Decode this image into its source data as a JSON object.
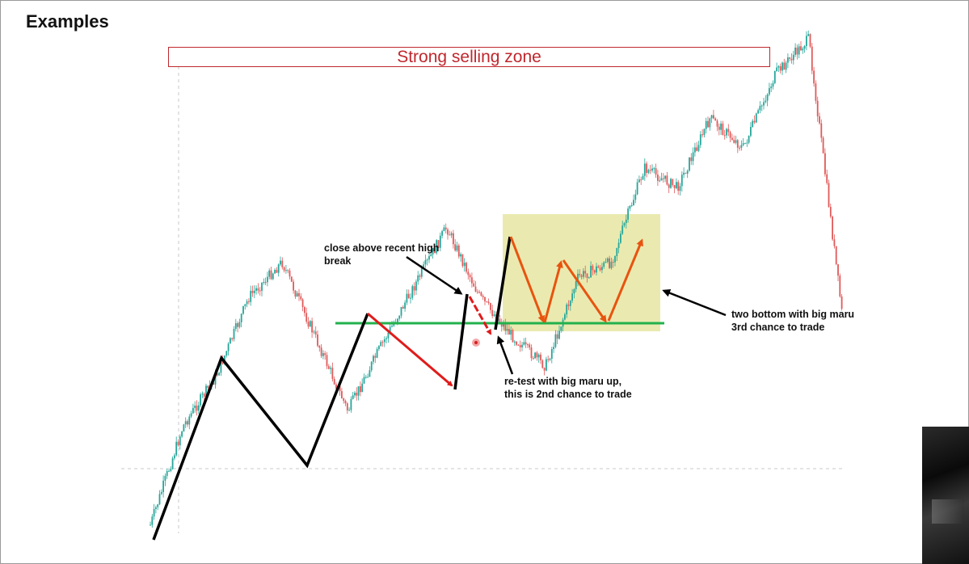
{
  "title": "Examples",
  "zone_label": "Strong selling zone",
  "annotations": [
    {
      "text": "close above recent high\nbreak"
    },
    {
      "text": "re-test with big maru up,\nthis is 2nd chance to trade"
    },
    {
      "text": "two bottom with big maru\n3rd chance to trade"
    }
  ],
  "colors": {
    "bull": "#26a69a",
    "bear": "#e05a5a",
    "zone_border": "#c0272d",
    "support_line": "#22b14c",
    "swing_line": "#000000",
    "pullback_arrow": "#e01b1b",
    "range_arrow": "#e8540f",
    "range_box": "#e6e6a2"
  },
  "chart_data": {
    "type": "candlestick",
    "title": "",
    "xlabel": "",
    "ylabel": "",
    "grid": false,
    "axes_shown": false,
    "y_scale": "price, higher = up; no axis printed",
    "price_path_relative": [
      0.02,
      0.22,
      0.32,
      0.48,
      0.55,
      0.4,
      0.25,
      0.38,
      0.5,
      0.62,
      0.48,
      0.4,
      0.34,
      0.52,
      0.55,
      0.74,
      0.7,
      0.84,
      0.78,
      0.93,
      1.0,
      0.45
    ],
    "support_level_relative": 0.62,
    "chart_elements": [
      "candlestick series (green up / red down)",
      "black zig-zag swing structure lines",
      "red pullback arrows",
      "green horizontal support line",
      "yellow shaded consolidation range",
      "orange zig-zag arrows inside range (two bottoms)",
      "black pointer arrows to annotations",
      "dashed grey guide lines"
    ]
  }
}
